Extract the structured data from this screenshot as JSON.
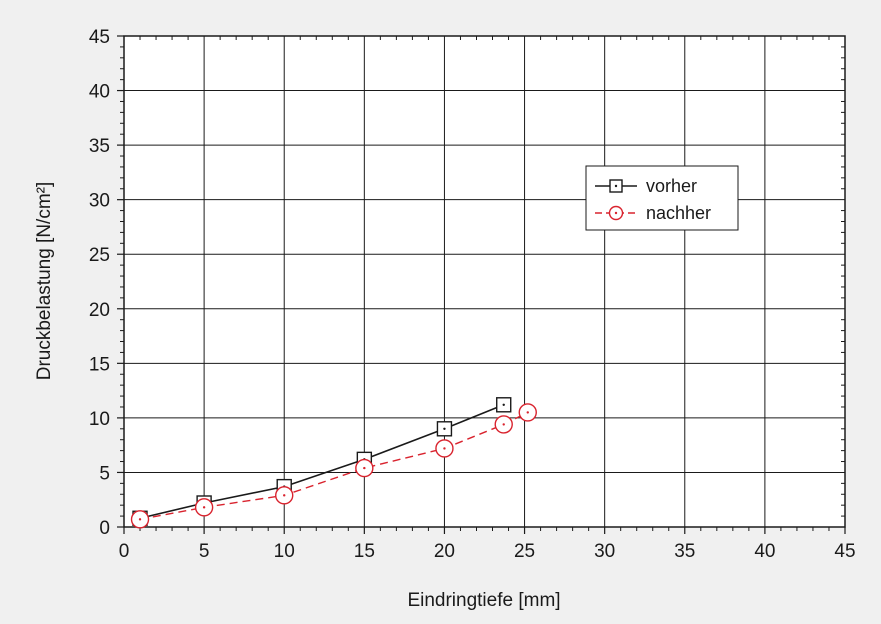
{
  "chart_data": {
    "type": "line",
    "title": "",
    "xlabel": "Eindringtiefe [mm]",
    "ylabel": "Druckbelastung [N/cm²]",
    "xlim": [
      0,
      45
    ],
    "ylim": [
      0,
      45
    ],
    "xticks": [
      0,
      5,
      10,
      15,
      20,
      25,
      30,
      35,
      40,
      45
    ],
    "yticks": [
      0,
      5,
      10,
      15,
      20,
      25,
      30,
      35,
      40,
      45
    ],
    "grid": true,
    "legend_position": "upper-right",
    "series": [
      {
        "name": "vorher",
        "color": "#1a1a1a",
        "marker": "square-dot",
        "line_style": "solid",
        "x": [
          1,
          5,
          10,
          15,
          20,
          23.7
        ],
        "y": [
          0.8,
          2.2,
          3.7,
          6.2,
          9.0,
          11.2
        ]
      },
      {
        "name": "nachher",
        "color": "#d9232e",
        "marker": "circle-dot",
        "line_style": "dashed",
        "x": [
          1,
          5,
          10,
          15,
          20,
          23.7,
          25.2
        ],
        "y": [
          0.7,
          1.8,
          2.9,
          5.4,
          7.2,
          9.4,
          10.5
        ]
      }
    ]
  }
}
